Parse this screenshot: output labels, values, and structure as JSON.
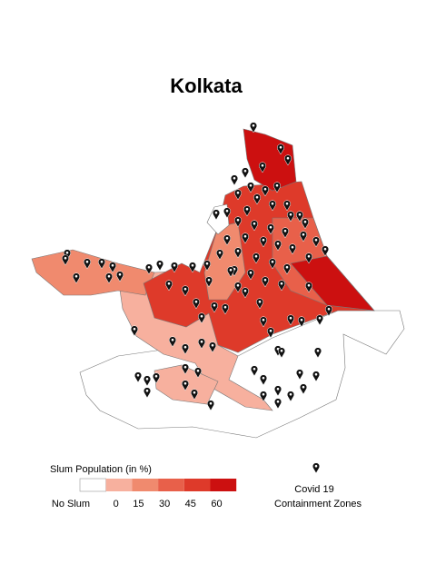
{
  "header": {
    "title": "Kolkata"
  },
  "legend": {
    "title": "Slum Population (in %)",
    "no_slum_label": "No Slum",
    "scale": [
      0,
      15,
      30,
      45,
      60
    ],
    "colors": [
      "#ffffff",
      "#f7b09e",
      "#f08a6e",
      "#e8604a",
      "#de3a2a",
      "#cc1010"
    ]
  },
  "pin_legend": {
    "line1": "Covid 19",
    "line2": "Containment Zones"
  }
}
